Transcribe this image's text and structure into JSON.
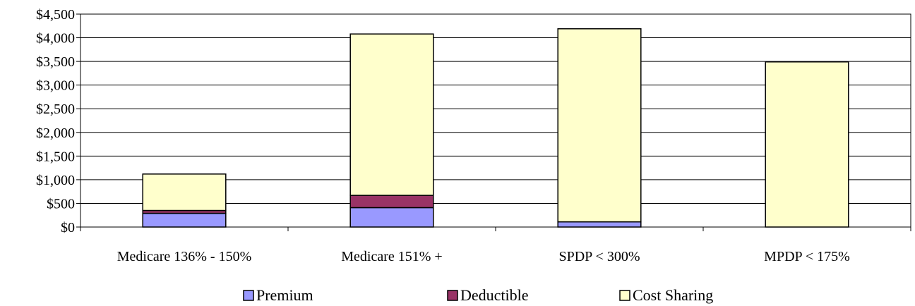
{
  "chart_data": {
    "type": "bar",
    "stacked": true,
    "title": "",
    "xlabel": "",
    "ylabel": "",
    "categories": [
      "Medicare 136% - 150%",
      "Medicare 151% +",
      "SPDP < 300%",
      "MPDP < 175%"
    ],
    "series": [
      {
        "name": "Premium",
        "color": "#9999ff",
        "values": [
          290,
          410,
          110,
          0
        ]
      },
      {
        "name": "Deductible",
        "color": "#993366",
        "values": [
          60,
          260,
          0,
          0
        ]
      },
      {
        "name": "Cost Sharing",
        "color": "#ffffcc",
        "values": [
          770,
          3410,
          4080,
          3490
        ]
      }
    ],
    "ylim": [
      0,
      4500
    ],
    "yticks": [
      0,
      500,
      1000,
      1500,
      2000,
      2500,
      3000,
      3500,
      4000,
      4500
    ],
    "ytick_labels": [
      "$0",
      "$500",
      "$1,000",
      "$1,500",
      "$2,000",
      "$2,500",
      "$3,000",
      "$3,500",
      "$4,000",
      "$4,500"
    ],
    "grid": true,
    "legend_position": "bottom"
  }
}
